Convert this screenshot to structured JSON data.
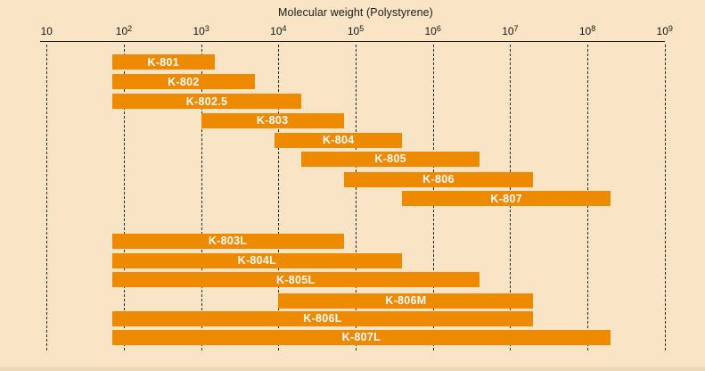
{
  "chart_data": {
    "type": "bar",
    "subtype": "horizontal-range-bars",
    "title": "Molecular weight (Polystyrene)",
    "x_scale": "log10",
    "xlim": [
      10,
      1000000000
    ],
    "x_tick_exponents": [
      1,
      2,
      3,
      4,
      5,
      6,
      7,
      8,
      9
    ],
    "grid": "dashed vertical line at each decade, drawn behind bars",
    "legend": "none",
    "bar_color": "#ee8a00",
    "background_color": "#f9e5c5",
    "bar_label_color": "#ffffff",
    "series": [
      {
        "label": "K-801",
        "group": 0,
        "mw_min": 70,
        "mw_max": 1500
      },
      {
        "label": "K-802",
        "group": 0,
        "mw_min": 70,
        "mw_max": 5000
      },
      {
        "label": "K-802.5",
        "group": 0,
        "mw_min": 70,
        "mw_max": 20000
      },
      {
        "label": "K-803",
        "group": 0,
        "mw_min": 1000,
        "mw_max": 70000
      },
      {
        "label": "K-804",
        "group": 0,
        "mw_min": 9000,
        "mw_max": 400000
      },
      {
        "label": "K-805",
        "group": 0,
        "mw_min": 20000,
        "mw_max": 4000000
      },
      {
        "label": "K-806",
        "group": 0,
        "mw_min": 70000,
        "mw_max": 20000000
      },
      {
        "label": "K-807",
        "group": 0,
        "mw_min": 400000,
        "mw_max": 200000000
      },
      {
        "label": "K-803L",
        "group": 1,
        "mw_min": 70,
        "mw_max": 70000
      },
      {
        "label": "K-804L",
        "group": 1,
        "mw_min": 70,
        "mw_max": 400000
      },
      {
        "label": "K-805L",
        "group": 1,
        "mw_min": 70,
        "mw_max": 4000000
      },
      {
        "label": "K-806M",
        "group": 1,
        "mw_min": 10000,
        "mw_max": 20000000
      },
      {
        "label": "K-806L",
        "group": 1,
        "mw_min": 70,
        "mw_max": 20000000
      },
      {
        "label": "K-807L",
        "group": 1,
        "mw_min": 70,
        "mw_max": 200000000
      }
    ]
  }
}
